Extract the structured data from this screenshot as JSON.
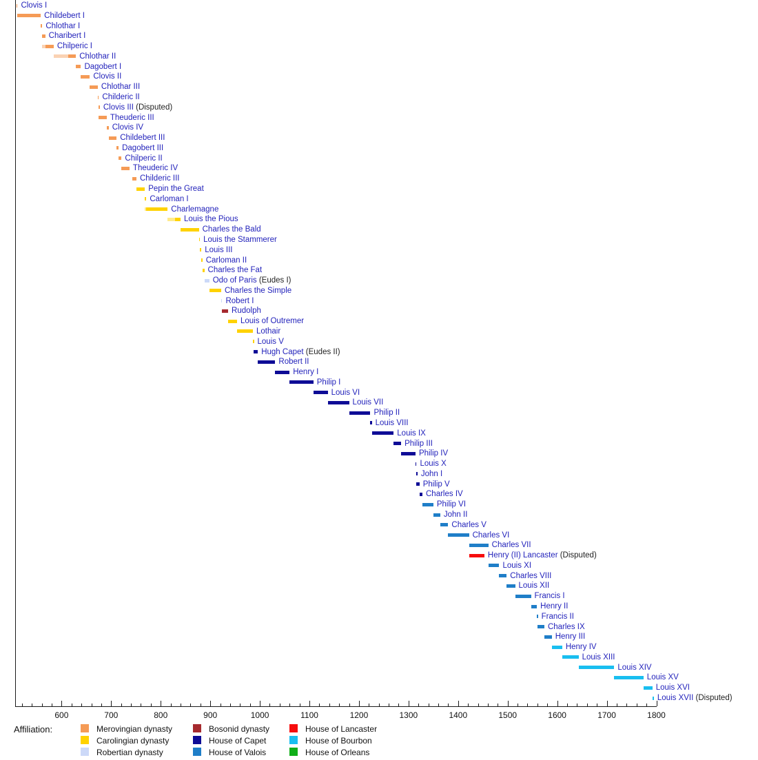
{
  "chart_data": {
    "type": "bar",
    "subtype": "timeline-gantt",
    "description": "Timeline of French monarchs with reign spans colored by dynastic affiliation",
    "axis": {
      "start": 507,
      "end": 1800,
      "major_ticks": [
        600,
        700,
        800,
        900,
        1000,
        1100,
        1200,
        1300,
        1400,
        1500,
        1600,
        1700,
        1800
      ],
      "minor_step": 20,
      "grid": false
    },
    "colors": {
      "merovingian": "#F59B56",
      "carolingian": "#FFD200",
      "robertian": "#CCD9F8",
      "bosonid": "#A62A2E",
      "capet": "#0E0C96",
      "valois": "#1F7EC8",
      "lancaster": "#F60D0D",
      "bourbon": "#19BEF0",
      "orleans": "#0FAE18"
    },
    "monarchs": [
      {
        "name": "Clovis I",
        "start": 509,
        "end": 511,
        "house": "merovingian"
      },
      {
        "name": "Childebert I",
        "start": 511,
        "end": 558,
        "house": "merovingian"
      },
      {
        "name": "Chlothar I",
        "start": 558,
        "end": 561,
        "house": "merovingian"
      },
      {
        "name": "Charibert I",
        "start": 561,
        "end": 567,
        "house": "merovingian"
      },
      {
        "name": "Chilperic I",
        "start": 561,
        "pale_until": 567,
        "end": 584,
        "house": "merovingian"
      },
      {
        "name": "Chlothar II",
        "start": 584,
        "pale_until": 613,
        "end": 629,
        "house": "merovingian"
      },
      {
        "name": "Dagobert I",
        "start": 629,
        "end": 639,
        "house": "merovingian"
      },
      {
        "name": "Clovis II",
        "start": 639,
        "end": 657,
        "house": "merovingian"
      },
      {
        "name": "Chlothar III",
        "start": 657,
        "end": 673,
        "house": "merovingian"
      },
      {
        "name": "Childeric II",
        "start": 673,
        "end": 675,
        "house": "merovingian"
      },
      {
        "name": "Clovis III",
        "note": "(Disputed)",
        "start": 675,
        "end": 676,
        "house": "merovingian"
      },
      {
        "name": "Theuderic III",
        "start": 675,
        "end": 691,
        "house": "merovingian"
      },
      {
        "name": "Clovis IV",
        "start": 691,
        "end": 695,
        "house": "merovingian"
      },
      {
        "name": "Childebert III",
        "start": 695,
        "end": 711,
        "house": "merovingian"
      },
      {
        "name": "Dagobert III",
        "start": 711,
        "end": 715,
        "house": "merovingian"
      },
      {
        "name": "Chilperic II",
        "start": 715,
        "end": 721,
        "house": "merovingian"
      },
      {
        "name": "Theuderic IV",
        "start": 721,
        "end": 737,
        "house": "merovingian"
      },
      {
        "name": "Childeric III",
        "start": 743,
        "end": 751,
        "house": "merovingian"
      },
      {
        "name": "Pepin the Great",
        "start": 751,
        "end": 768,
        "house": "carolingian"
      },
      {
        "name": "Carloman I",
        "start": 768,
        "end": 771,
        "house": "carolingian"
      },
      {
        "name": "Charlemagne",
        "start": 768,
        "pale_until": 771,
        "end": 814,
        "house": "carolingian"
      },
      {
        "name": "Louis the Pious",
        "start": 814,
        "pale_until": 829,
        "end": 840,
        "house": "carolingian"
      },
      {
        "name": "Charles the Bald",
        "start": 840,
        "end": 877,
        "house": "carolingian"
      },
      {
        "name": "Louis the Stammerer",
        "start": 877,
        "end": 879,
        "house": "carolingian"
      },
      {
        "name": "Louis III",
        "start": 879,
        "end": 882,
        "house": "carolingian"
      },
      {
        "name": "Carloman II",
        "start": 882,
        "end": 884,
        "house": "carolingian"
      },
      {
        "name": "Charles the Fat",
        "start": 885,
        "end": 888,
        "house": "carolingian"
      },
      {
        "name": "Odo of Paris",
        "note": "(Eudes I)",
        "start": 888,
        "end": 898,
        "house": "robertian"
      },
      {
        "name": "Charles the Simple",
        "start": 898,
        "end": 922,
        "house": "carolingian"
      },
      {
        "name": "Robert I",
        "start": 922,
        "end": 923,
        "house": "robertian"
      },
      {
        "name": "Rudolph",
        "start": 923,
        "end": 936,
        "house": "bosonid"
      },
      {
        "name": "Louis of Outremer",
        "start": 936,
        "end": 954,
        "house": "carolingian"
      },
      {
        "name": "Lothair",
        "start": 954,
        "end": 986,
        "house": "carolingian"
      },
      {
        "name": "Louis V",
        "start": 986,
        "end": 987,
        "house": "carolingian"
      },
      {
        "name": "Hugh Capet",
        "note": "(Eudes II)",
        "start": 987,
        "end": 996,
        "house": "capet"
      },
      {
        "name": "Robert II",
        "start": 996,
        "end": 1031,
        "house": "capet"
      },
      {
        "name": "Henry I",
        "start": 1031,
        "end": 1060,
        "house": "capet"
      },
      {
        "name": "Philip I",
        "start": 1060,
        "end": 1108,
        "house": "capet"
      },
      {
        "name": "Louis VI",
        "start": 1108,
        "end": 1137,
        "house": "capet"
      },
      {
        "name": "Louis VII",
        "start": 1137,
        "end": 1180,
        "house": "capet"
      },
      {
        "name": "Philip II",
        "start": 1180,
        "end": 1223,
        "house": "capet"
      },
      {
        "name": "Louis VIII",
        "start": 1223,
        "end": 1226,
        "house": "capet"
      },
      {
        "name": "Louis IX",
        "start": 1226,
        "end": 1270,
        "house": "capet"
      },
      {
        "name": "Philip III",
        "start": 1270,
        "end": 1285,
        "house": "capet"
      },
      {
        "name": "Philip IV",
        "start": 1285,
        "end": 1314,
        "house": "capet"
      },
      {
        "name": "Louis X",
        "start": 1314,
        "end": 1316,
        "house": "capet"
      },
      {
        "name": "John I",
        "start": 1316,
        "end": 1316,
        "house": "capet"
      },
      {
        "name": "Philip V",
        "start": 1316,
        "end": 1322,
        "house": "capet"
      },
      {
        "name": "Charles IV",
        "start": 1322,
        "end": 1328,
        "house": "capet"
      },
      {
        "name": "Philip VI",
        "start": 1328,
        "end": 1350,
        "house": "valois"
      },
      {
        "name": "John II",
        "start": 1350,
        "end": 1364,
        "house": "valois"
      },
      {
        "name": "Charles V",
        "start": 1364,
        "end": 1380,
        "house": "valois"
      },
      {
        "name": "Charles VI",
        "start": 1380,
        "end": 1422,
        "house": "valois"
      },
      {
        "name": "Charles VII",
        "start": 1422,
        "end": 1461,
        "house": "valois"
      },
      {
        "name": "Henry (II) Lancaster",
        "note": "(Disputed)",
        "start": 1422,
        "end": 1453,
        "house": "lancaster"
      },
      {
        "name": "Louis XI",
        "start": 1461,
        "end": 1483,
        "house": "valois"
      },
      {
        "name": "Charles VIII",
        "start": 1483,
        "end": 1498,
        "house": "valois"
      },
      {
        "name": "Louis XII",
        "start": 1498,
        "end": 1515,
        "house": "valois"
      },
      {
        "name": "Francis I",
        "start": 1515,
        "end": 1547,
        "house": "valois"
      },
      {
        "name": "Henry II",
        "start": 1547,
        "end": 1559,
        "house": "valois"
      },
      {
        "name": "Francis II",
        "start": 1559,
        "end": 1560,
        "house": "valois"
      },
      {
        "name": "Charles IX",
        "start": 1560,
        "end": 1574,
        "house": "valois"
      },
      {
        "name": "Henry III",
        "start": 1574,
        "end": 1589,
        "house": "valois"
      },
      {
        "name": "Henry IV",
        "start": 1589,
        "end": 1610,
        "house": "bourbon"
      },
      {
        "name": "Louis XIII",
        "start": 1610,
        "end": 1643,
        "house": "bourbon"
      },
      {
        "name": "Louis XIV",
        "start": 1643,
        "end": 1715,
        "house": "bourbon"
      },
      {
        "name": "Louis XV",
        "start": 1715,
        "end": 1774,
        "house": "bourbon"
      },
      {
        "name": "Louis XVI",
        "start": 1774,
        "end": 1792,
        "house": "bourbon"
      },
      {
        "name": "Louis XVII",
        "note": "(Disputed)",
        "start": 1792,
        "end": 1795,
        "house": "bourbon"
      }
    ],
    "legend": {
      "title": "Affiliation:",
      "columns": [
        [
          {
            "label": "Merovingian dynasty",
            "key": "merovingian"
          },
          {
            "label": "Carolingian dynasty",
            "key": "carolingian"
          },
          {
            "label": "Robertian dynasty",
            "key": "robertian"
          }
        ],
        [
          {
            "label": "Bosonid dynasty",
            "key": "bosonid"
          },
          {
            "label": "House of Capet",
            "key": "capet"
          },
          {
            "label": "House of Valois",
            "key": "valois"
          }
        ],
        [
          {
            "label": "House of Lancaster",
            "key": "lancaster"
          },
          {
            "label": "House of Bourbon",
            "key": "bourbon"
          },
          {
            "label": "House of Orleans",
            "key": "orleans"
          }
        ]
      ]
    }
  }
}
